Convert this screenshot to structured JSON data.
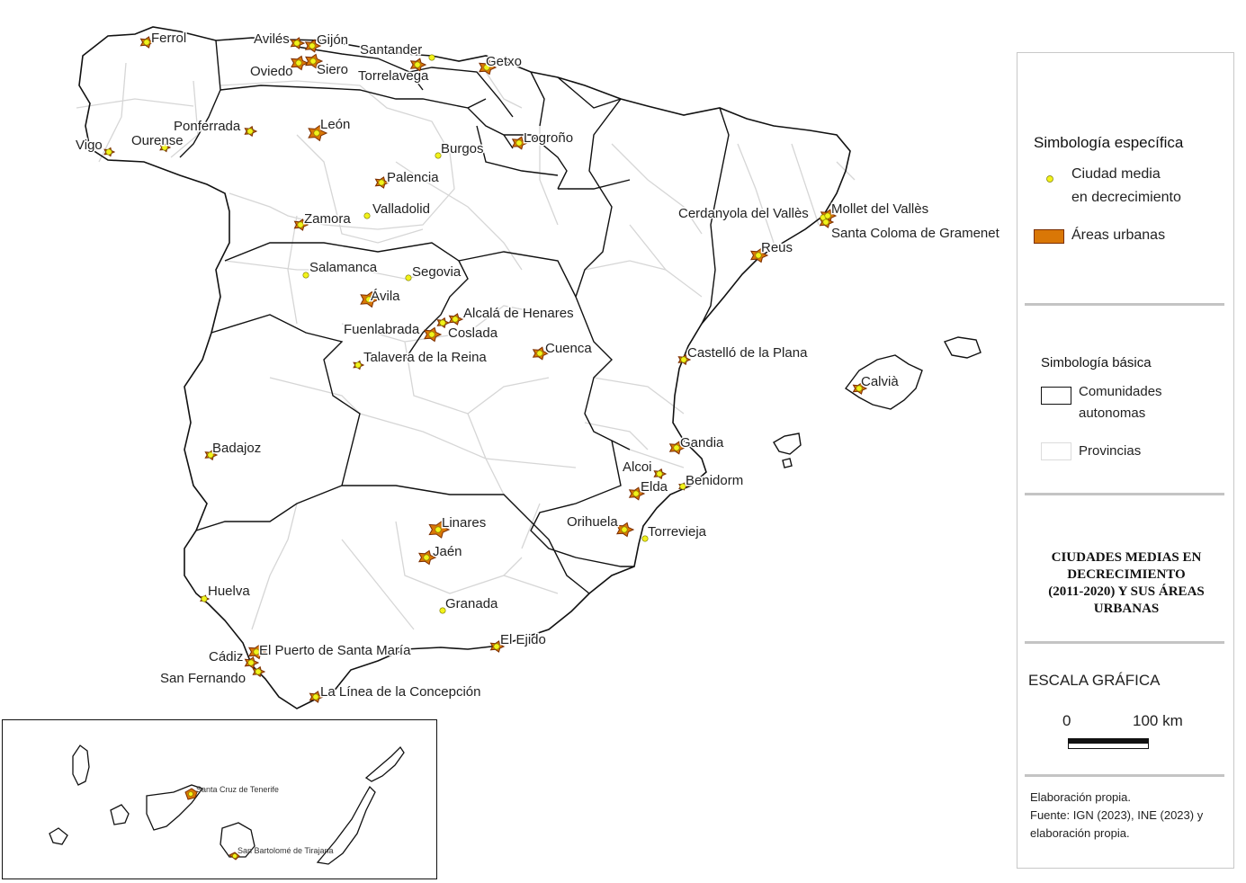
{
  "colors": {
    "community_border": "#111111",
    "province_border": "#d6d6d6",
    "urban_fill": "#d97706",
    "urban_stroke": "#7a2e00",
    "city_point": "#f2f21a",
    "city_point_stroke": "#7a7a00"
  },
  "cities": [
    {
      "name": "Ferrol"
    },
    {
      "name": "Avilés"
    },
    {
      "name": "Gijón"
    },
    {
      "name": "Oviedo"
    },
    {
      "name": "Siero"
    },
    {
      "name": "Santander"
    },
    {
      "name": "Torrelavega"
    },
    {
      "name": "Getxo"
    },
    {
      "name": "Vigo"
    },
    {
      "name": "Ourense"
    },
    {
      "name": "Ponferrada"
    },
    {
      "name": "León"
    },
    {
      "name": "Burgos"
    },
    {
      "name": "Logroño"
    },
    {
      "name": "Palencia"
    },
    {
      "name": "Valladolid"
    },
    {
      "name": "Zamora"
    },
    {
      "name": "Salamanca"
    },
    {
      "name": "Segovia"
    },
    {
      "name": "Ávila"
    },
    {
      "name": "Alcalá de Henares"
    },
    {
      "name": "Fuenlabrada"
    },
    {
      "name": "Coslada"
    },
    {
      "name": "Talavera de la Reina"
    },
    {
      "name": "Cuenca"
    },
    {
      "name": "Cerdanyola del Vallès"
    },
    {
      "name": "Mollet del Vallès"
    },
    {
      "name": "Santa Coloma de Gramenet"
    },
    {
      "name": "Reus"
    },
    {
      "name": "Castelló de la Plana"
    },
    {
      "name": "Calvià"
    },
    {
      "name": "Badajoz"
    },
    {
      "name": "Gandia"
    },
    {
      "name": "Alcoi"
    },
    {
      "name": "Elda"
    },
    {
      "name": "Benidorm"
    },
    {
      "name": "Orihuela"
    },
    {
      "name": "Torrevieja"
    },
    {
      "name": "Linares"
    },
    {
      "name": "Jaén"
    },
    {
      "name": "Granada"
    },
    {
      "name": "Huelva"
    },
    {
      "name": "El Ejido"
    },
    {
      "name": "Cádiz"
    },
    {
      "name": "El Puerto de Santa María"
    },
    {
      "name": "San Fernando"
    },
    {
      "name": "La Línea de la Concepción"
    }
  ],
  "canary_cities": [
    {
      "name": "Santa Cruz de Tenerife"
    },
    {
      "name": "San Bartolomé de Tirajana"
    }
  ],
  "legend": {
    "specific_title": "Simbología específica",
    "point_label_line1": "Ciudad media",
    "point_label_line2": "en decrecimiento",
    "urban_label": "Áreas urbanas",
    "basic_title": "Simbología básica",
    "communities_label_line1": "Comunidades",
    "communities_label_line2": "autonomas",
    "provinces_label": "Provincias",
    "map_title_line1": "CIUDADES MEDIAS EN",
    "map_title_line2": "DECRECIMIENTO",
    "map_title_line3": "(2011-2020) Y SUS ÁREAS",
    "map_title_line4": "URBANAS",
    "scale_title": "ESCALA GRÁFICA",
    "scale_zero": "0",
    "scale_max": "100 km",
    "credits_line1": "Elaboración propia.",
    "credits_line2": "Fuente: IGN (2023), INE (2023)  y",
    "credits_line3": "elaboración propia."
  }
}
